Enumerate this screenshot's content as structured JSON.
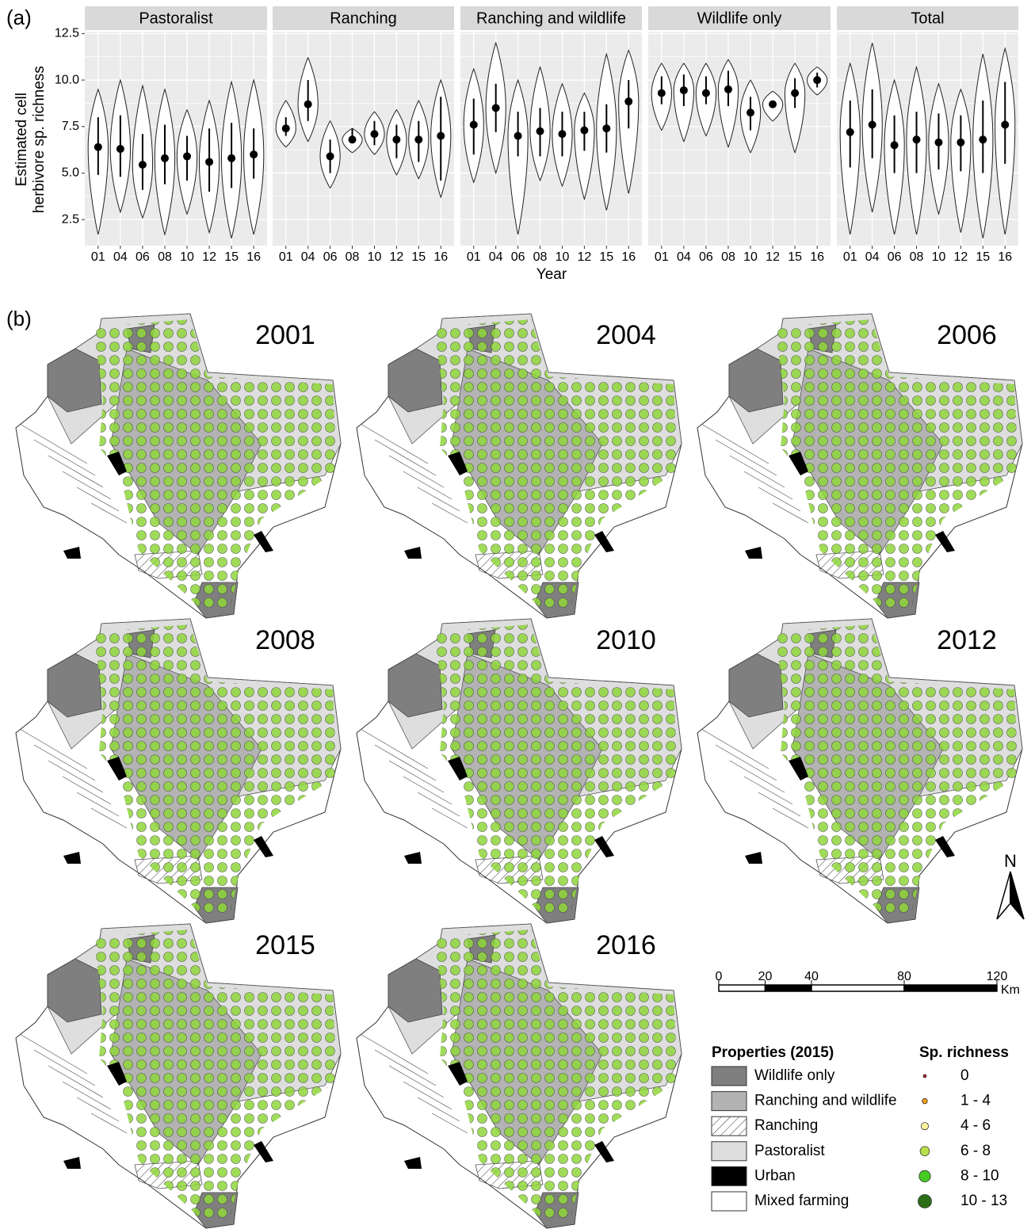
{
  "chart_data": {
    "type": "violin",
    "panel_label": "(a)",
    "ylabel": [
      "Estimated cell",
      "herbivore sp. richness"
    ],
    "xlabel": "Year",
    "categories": [
      "01",
      "04",
      "06",
      "08",
      "10",
      "12",
      "15",
      "16"
    ],
    "ylim": [
      1.1,
      12.6
    ],
    "yticks": [
      2.5,
      {
        "value": 5,
        "label": "5.0"
      },
      7.5,
      {
        "value": 10,
        "label": "10.0"
      },
      12.5
    ],
    "grid": true,
    "facets": [
      {
        "name": "Pastoralist",
        "median": [
          6.4,
          6.3,
          5.45,
          5.8,
          5.9,
          5.6,
          5.8,
          6.0
        ],
        "lower": [
          4.9,
          4.8,
          4.1,
          4.4,
          4.6,
          4.0,
          4.2,
          4.7
        ],
        "upper": [
          8.0,
          8.1,
          7.1,
          7.6,
          7.0,
          7.4,
          7.7,
          7.4
        ],
        "min": [
          1.7,
          2.9,
          2.6,
          1.7,
          2.8,
          1.8,
          1.5,
          1.7
        ],
        "max": [
          9.5,
          10.0,
          9.7,
          9.5,
          8.4,
          8.9,
          9.9,
          10.0
        ]
      },
      {
        "name": "Ranching",
        "median": [
          7.4,
          8.7,
          5.9,
          6.8,
          7.1,
          6.8,
          6.8,
          7.0
        ],
        "lower": [
          7.0,
          7.8,
          5.0,
          6.6,
          6.5,
          5.8,
          5.6,
          4.6
        ],
        "upper": [
          8.0,
          10.0,
          6.8,
          7.4,
          7.8,
          7.6,
          7.8,
          9.1
        ],
        "min": [
          6.4,
          6.7,
          4.2,
          6.1,
          6.0,
          4.9,
          4.7,
          3.7
        ],
        "max": [
          8.9,
          11.2,
          7.8,
          7.4,
          8.3,
          8.4,
          8.9,
          10.0
        ]
      },
      {
        "name": "Ranching and wildlife",
        "median": [
          7.6,
          8.5,
          7.0,
          7.25,
          7.1,
          7.3,
          7.4,
          8.85
        ],
        "lower": [
          6.0,
          7.2,
          5.9,
          5.9,
          5.9,
          6.2,
          6.1,
          7.4
        ],
        "upper": [
          9.0,
          9.8,
          8.3,
          8.5,
          8.3,
          8.3,
          8.7,
          10.0
        ],
        "min": [
          4.5,
          5.0,
          1.7,
          4.6,
          4.3,
          3.6,
          3.0,
          3.9
        ],
        "max": [
          10.6,
          12.0,
          10.0,
          10.7,
          9.8,
          9.3,
          11.4,
          11.6
        ]
      },
      {
        "name": "Wildlife only",
        "median": [
          9.3,
          9.45,
          9.3,
          9.5,
          8.25,
          8.7,
          9.3,
          10.0
        ],
        "lower": [
          8.7,
          8.6,
          8.7,
          8.6,
          7.3,
          8.5,
          8.5,
          9.6
        ],
        "upper": [
          10.2,
          10.3,
          10.2,
          10.5,
          9.1,
          8.9,
          10.1,
          10.4
        ],
        "min": [
          7.3,
          6.7,
          7.0,
          6.4,
          6.1,
          7.8,
          6.1,
          9.2
        ],
        "max": [
          10.9,
          10.9,
          10.9,
          11.1,
          10.0,
          9.4,
          10.9,
          10.7
        ]
      },
      {
        "name": "Total",
        "median": [
          7.2,
          7.6,
          6.5,
          6.8,
          6.65,
          6.65,
          6.8,
          7.6
        ],
        "lower": [
          5.3,
          5.8,
          5.0,
          5.0,
          5.2,
          5.1,
          5.0,
          5.5
        ],
        "upper": [
          8.9,
          9.5,
          8.1,
          8.3,
          8.2,
          8.1,
          8.9,
          9.9
        ],
        "min": [
          1.7,
          2.9,
          1.7,
          1.7,
          2.8,
          1.8,
          1.5,
          1.7
        ],
        "max": [
          10.9,
          12.0,
          10.0,
          10.7,
          9.8,
          9.5,
          11.4,
          11.7
        ]
      }
    ]
  },
  "maps": {
    "panel_label": "(b)",
    "years": [
      "2001",
      "2004",
      "2006",
      "2008",
      "2010",
      "2012",
      "2015",
      "2016"
    ],
    "north": "N",
    "scale": {
      "ticks": [
        0,
        20,
        40,
        80,
        120
      ],
      "unit": "Km"
    },
    "legend_properties": {
      "title": "Properties (2015)",
      "items": [
        {
          "label": "Wildlife only",
          "color": "#7f7f7f"
        },
        {
          "label": "Ranching and wildlife",
          "color": "#b3b3b3"
        },
        {
          "label": "Ranching",
          "color": "#ffffff",
          "hatched": true
        },
        {
          "label": "Pastoralist",
          "color": "#dedede"
        },
        {
          "label": "Urban",
          "color": "#000000"
        },
        {
          "label": "Mixed farming",
          "color": "#ffffff"
        }
      ]
    },
    "legend_richness": {
      "title": "Sp. richness",
      "items": [
        {
          "label": "0",
          "color": "#b2182b"
        },
        {
          "label": "1 - 4",
          "color": "#f39c12"
        },
        {
          "label": "4 - 6",
          "color": "#fff3a0"
        },
        {
          "label": "6 - 8",
          "color": "#b8e04a"
        },
        {
          "label": "8 - 10",
          "color": "#44cc22"
        },
        {
          "label": "10 - 13",
          "color": "#2b6e17"
        }
      ]
    }
  }
}
